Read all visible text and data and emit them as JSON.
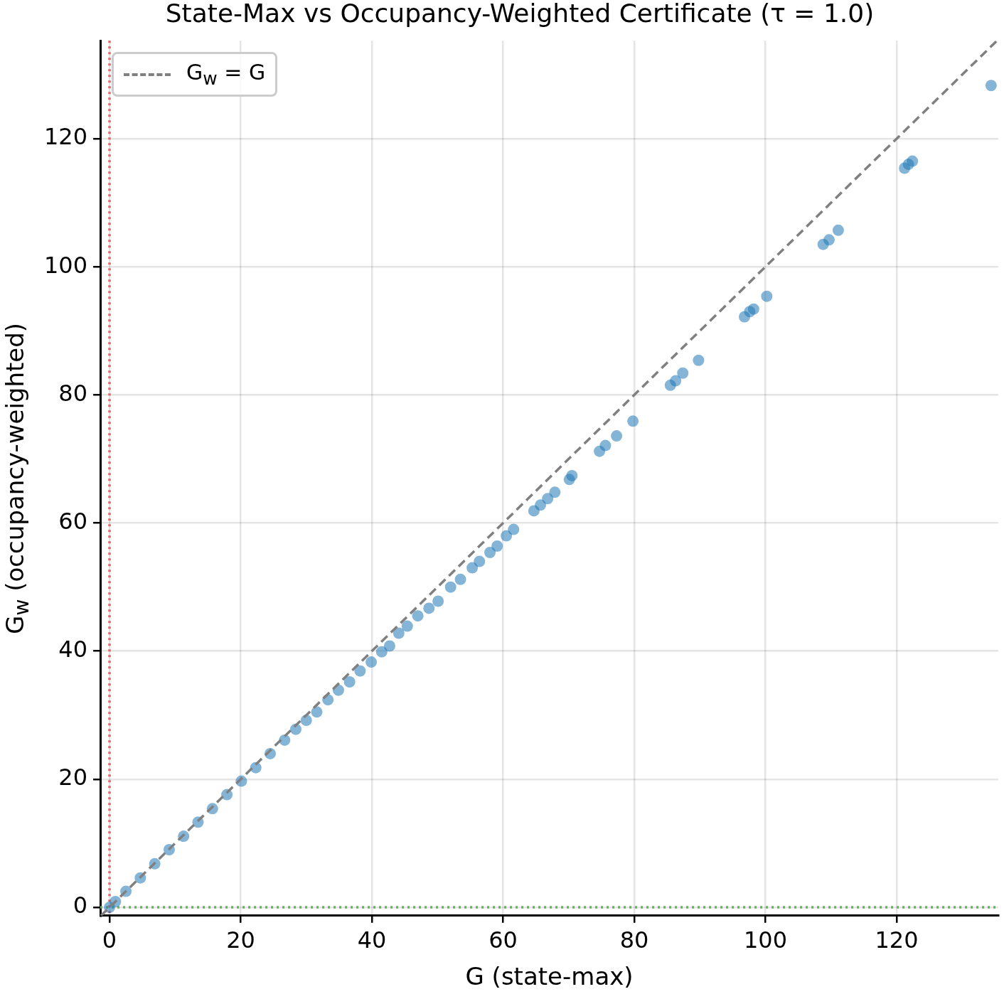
{
  "chart_data": {
    "type": "scatter",
    "title": "State-Max vs Occupancy-Weighted Certificate (τ = 1.0)",
    "xlabel": "G (state-max)",
    "ylabel": "G$_{w}$ (occupancy-weighted)",
    "xlim": [
      -1.4,
      135.5
    ],
    "ylim": [
      -1.3,
      135.3
    ],
    "xticks": [
      0,
      20,
      40,
      60,
      80,
      100,
      120
    ],
    "yticks": [
      0,
      20,
      40,
      60,
      80,
      100,
      120
    ],
    "grid": true,
    "legend": "top left",
    "marker": "circle",
    "series": [
      {
        "type": "scatter",
        "color": "#1f77b4",
        "x": [
          0,
          0.9,
          2.5,
          4.7,
          6.9,
          9.1,
          11.3,
          13.5,
          15.7,
          17.9,
          20.1,
          22.3,
          24.5,
          26.7,
          28.4,
          30,
          31.6,
          33.3,
          34.9,
          36.6,
          38.2,
          39.9,
          41.5,
          42.7,
          44.1,
          45.4,
          47,
          48.7,
          50.1,
          52,
          53.5,
          55.3,
          56.4,
          58,
          59.1,
          60.5,
          61.6,
          64.7,
          65.7,
          66.8,
          67.9,
          70.1,
          70.5,
          74.7,
          75.6,
          77.3,
          79.8,
          85.5,
          86.3,
          87.4,
          89.8,
          96.8,
          97.6,
          98.2,
          100.2,
          108.8,
          109.7,
          111.1,
          121.2,
          121.8,
          122.4,
          134.4
        ],
        "values": [
          0,
          0.9,
          2.5,
          4.6,
          6.8,
          9,
          11.1,
          13.3,
          15.4,
          17.6,
          19.7,
          21.8,
          24,
          26.1,
          27.8,
          29.2,
          30.5,
          32.4,
          33.9,
          35.2,
          36.9,
          38.3,
          39.9,
          40.8,
          42.8,
          43.9,
          45.5,
          46.7,
          47.8,
          50,
          51.2,
          53,
          54,
          55.4,
          56.4,
          58,
          59,
          61.9,
          62.8,
          63.8,
          64.8,
          66.8,
          67.4,
          71.2,
          72.1,
          73.6,
          75.9,
          81.5,
          82.2,
          83.4,
          85.4,
          92.2,
          93,
          93.4,
          95.4,
          103.5,
          104.2,
          105.7,
          115.4,
          116,
          116.5,
          128.3
        ]
      },
      {
        "type": "line",
        "name": "G$_{w}$ = G",
        "color": "#808080",
        "line_style": "dashed",
        "marker": "none",
        "x": [
          -1.3,
          135.3
        ],
        "values": [
          -1.3,
          135.3
        ]
      }
    ],
    "ref_lines": [
      {
        "axis": "x",
        "value": 0,
        "color": "#e06666",
        "line_style": "dotted"
      },
      {
        "axis": "y",
        "value": 0,
        "color": "#5cb85c",
        "line_style": "dotted"
      }
    ]
  }
}
